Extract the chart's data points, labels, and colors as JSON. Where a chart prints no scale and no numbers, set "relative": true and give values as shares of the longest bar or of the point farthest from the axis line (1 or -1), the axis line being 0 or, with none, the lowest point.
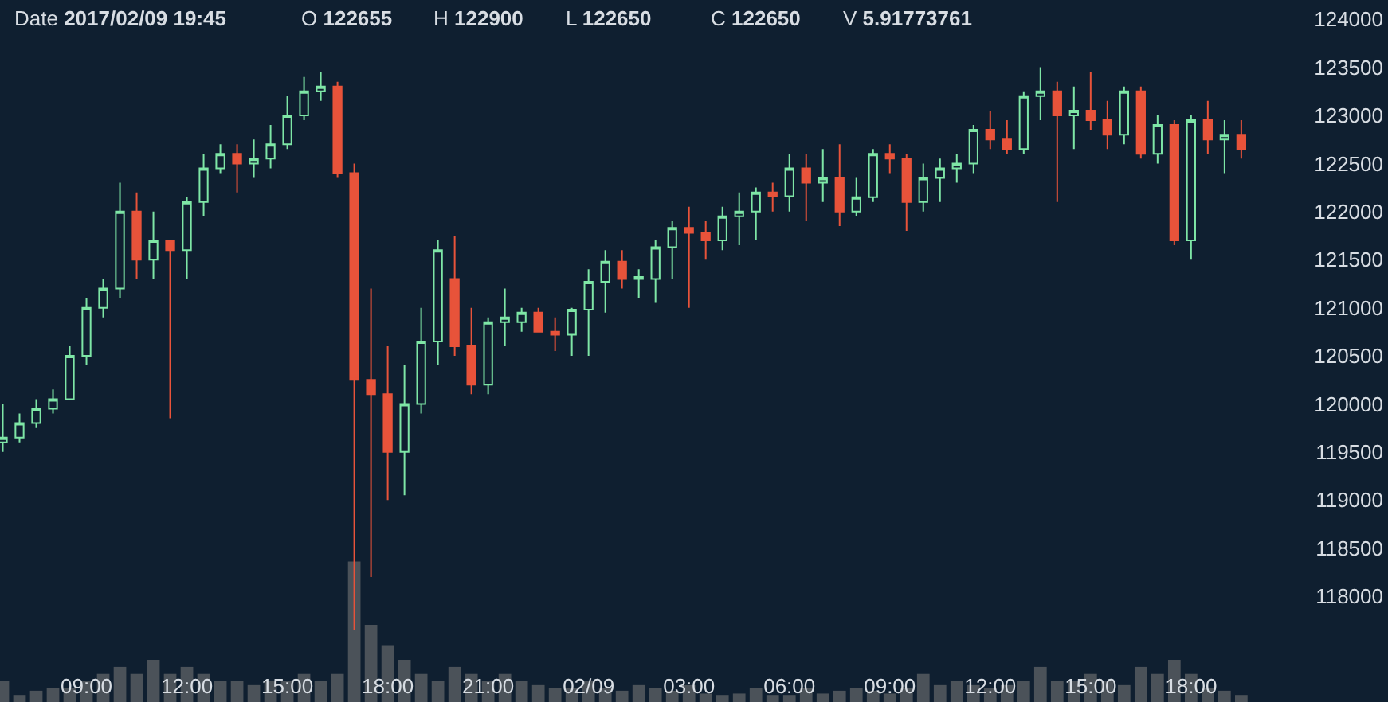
{
  "chart_data": [
    {
      "type": "candlestick",
      "annotations": [
        "Date 2017/02/09 19:45",
        "O 122655",
        "H 122900",
        "L 122650",
        "C 122650",
        "V 5.91773761"
      ],
      "x": [
        "2017-02-08T06:30",
        "2017-02-08T07:00",
        "2017-02-08T07:30",
        "2017-02-08T08:00",
        "2017-02-08T08:30",
        "2017-02-08T09:00",
        "2017-02-08T09:30",
        "2017-02-08T10:00",
        "2017-02-08T10:30",
        "2017-02-08T11:00",
        "2017-02-08T11:30",
        "2017-02-08T12:00",
        "2017-02-08T12:30",
        "2017-02-08T13:00",
        "2017-02-08T13:30",
        "2017-02-08T14:00",
        "2017-02-08T14:30",
        "2017-02-08T15:00",
        "2017-02-08T15:30",
        "2017-02-08T16:00",
        "2017-02-08T16:30",
        "2017-02-08T17:00",
        "2017-02-08T17:30",
        "2017-02-08T18:00",
        "2017-02-08T18:30",
        "2017-02-08T19:00",
        "2017-02-08T19:30",
        "2017-02-08T20:00",
        "2017-02-08T20:30",
        "2017-02-08T21:00",
        "2017-02-08T21:30",
        "2017-02-08T22:00",
        "2017-02-08T22:30",
        "2017-02-08T23:00",
        "2017-02-08T23:30",
        "2017-02-09T00:00",
        "2017-02-09T00:30",
        "2017-02-09T01:00",
        "2017-02-09T01:30",
        "2017-02-09T02:00",
        "2017-02-09T02:30",
        "2017-02-09T03:00",
        "2017-02-09T03:30",
        "2017-02-09T04:00",
        "2017-02-09T04:30",
        "2017-02-09T05:00",
        "2017-02-09T05:30",
        "2017-02-09T06:00",
        "2017-02-09T06:30",
        "2017-02-09T07:00",
        "2017-02-09T07:30",
        "2017-02-09T08:00",
        "2017-02-09T08:30",
        "2017-02-09T09:00",
        "2017-02-09T09:30",
        "2017-02-09T10:00",
        "2017-02-09T10:30",
        "2017-02-09T11:00",
        "2017-02-09T11:30",
        "2017-02-09T12:00",
        "2017-02-09T12:30",
        "2017-02-09T13:00",
        "2017-02-09T13:30",
        "2017-02-09T14:00",
        "2017-02-09T14:30",
        "2017-02-09T15:00",
        "2017-02-09T15:30",
        "2017-02-09T16:00",
        "2017-02-09T16:30",
        "2017-02-09T17:00",
        "2017-02-09T17:30",
        "2017-02-09T18:00",
        "2017-02-09T18:30",
        "2017-02-09T19:00",
        "2017-02-09T19:30"
      ],
      "ohlc": [
        [
          119600,
          120000,
          119500,
          119650
        ],
        [
          119650,
          119900,
          119600,
          119800
        ],
        [
          119800,
          120050,
          119750,
          119950
        ],
        [
          119950,
          120150,
          119900,
          120050
        ],
        [
          120050,
          120600,
          120050,
          120500
        ],
        [
          120500,
          121100,
          120400,
          121000
        ],
        [
          121000,
          121300,
          120900,
          121200
        ],
        [
          121200,
          122300,
          121100,
          122000
        ],
        [
          122000,
          122200,
          121300,
          121500
        ],
        [
          121500,
          122000,
          121300,
          121700
        ],
        [
          121700,
          121700,
          119850,
          121600
        ],
        [
          121600,
          122150,
          121300,
          122100
        ],
        [
          122100,
          122600,
          121950,
          122450
        ],
        [
          122450,
          122700,
          122400,
          122600
        ],
        [
          122600,
          122700,
          122200,
          122500
        ],
        [
          122500,
          122750,
          122350,
          122550
        ],
        [
          122550,
          122900,
          122450,
          122700
        ],
        [
          122700,
          123200,
          122650,
          123000
        ],
        [
          123000,
          123400,
          122950,
          123250
        ],
        [
          123250,
          123450,
          123150,
          123300
        ],
        [
          123300,
          123350,
          122350,
          122400
        ],
        [
          122400,
          122500,
          117650,
          120250
        ],
        [
          120250,
          121200,
          118200,
          120100
        ],
        [
          120100,
          120600,
          119000,
          119500
        ],
        [
          119500,
          120400,
          119050,
          120000
        ],
        [
          120000,
          121000,
          119900,
          120650
        ],
        [
          120650,
          121700,
          120400,
          121600
        ],
        [
          121300,
          121750,
          120500,
          120600
        ],
        [
          120600,
          121000,
          120100,
          120200
        ],
        [
          120200,
          120900,
          120100,
          120850
        ],
        [
          120850,
          121200,
          120600,
          120900
        ],
        [
          120850,
          121000,
          120750,
          120950
        ],
        [
          120950,
          121000,
          120750,
          120750
        ],
        [
          120750,
          120900,
          120550,
          120720
        ],
        [
          120720,
          121000,
          120500,
          120980
        ],
        [
          120980,
          121400,
          120500,
          121270
        ],
        [
          121270,
          121600,
          120950,
          121480
        ],
        [
          121480,
          121600,
          121200,
          121300
        ],
        [
          121300,
          121400,
          121100,
          121320
        ],
        [
          121300,
          121700,
          121050,
          121630
        ],
        [
          121630,
          121900,
          121300,
          121830
        ],
        [
          121830,
          122050,
          121000,
          121780
        ],
        [
          121780,
          121900,
          121500,
          121700
        ],
        [
          121700,
          122050,
          121600,
          121950
        ],
        [
          121950,
          122200,
          121650,
          122000
        ],
        [
          122000,
          122250,
          121700,
          122200
        ],
        [
          122200,
          122300,
          122000,
          122160
        ],
        [
          122160,
          122600,
          122000,
          122450
        ],
        [
          122450,
          122600,
          121900,
          122300
        ],
        [
          122300,
          122650,
          122100,
          122350
        ],
        [
          122350,
          122700,
          121850,
          122000
        ],
        [
          122000,
          122350,
          121950,
          122150
        ],
        [
          122150,
          122650,
          122100,
          122600
        ],
        [
          122600,
          122700,
          122400,
          122550
        ],
        [
          122550,
          122600,
          121800,
          122100
        ],
        [
          122100,
          122500,
          122000,
          122350
        ],
        [
          122350,
          122550,
          122100,
          122450
        ],
        [
          122450,
          122600,
          122300,
          122500
        ],
        [
          122500,
          122900,
          122400,
          122850
        ],
        [
          122850,
          123050,
          122650,
          122750
        ],
        [
          122750,
          122950,
          122600,
          122650
        ],
        [
          122650,
          123250,
          122600,
          123200
        ],
        [
          123200,
          123500,
          122950,
          123250
        ],
        [
          123250,
          123350,
          122100,
          123000
        ],
        [
          123000,
          123300,
          122650,
          123050
        ],
        [
          123050,
          123450,
          122850,
          122950
        ],
        [
          122950,
          123150,
          122650,
          122800
        ],
        [
          122800,
          123300,
          122700,
          123250
        ],
        [
          123250,
          123300,
          122550,
          122600
        ],
        [
          122600,
          123000,
          122500,
          122900
        ],
        [
          122900,
          122950,
          121650,
          121700
        ],
        [
          121700,
          123000,
          121500,
          122950
        ],
        [
          122950,
          123150,
          122600,
          122750
        ],
        [
          122750,
          122950,
          122400,
          122800
        ],
        [
          122800,
          122950,
          122550,
          122650
        ]
      ],
      "colors": [
        "#7ee6a6",
        "#7ee6a6",
        "#7ee6a6",
        "#7ee6a6",
        "#7ee6a6",
        "#7ee6a6",
        "#7ee6a6",
        "#7ee6a6",
        "#e8533a",
        "#7ee6a6",
        "#e8533a",
        "#7ee6a6",
        "#7ee6a6",
        "#7ee6a6",
        "#e8533a",
        "#7ee6a6",
        "#7ee6a6",
        "#7ee6a6",
        "#7ee6a6",
        "#7ee6a6",
        "#e8533a",
        "#e8533a",
        "#e8533a",
        "#e8533a",
        "#7ee6a6",
        "#7ee6a6",
        "#7ee6a6",
        "#e8533a",
        "#e8533a",
        "#7ee6a6",
        "#7ee6a6",
        "#7ee6a6",
        "#e8533a",
        "#e8533a",
        "#7ee6a6",
        "#7ee6a6",
        "#7ee6a6",
        "#e8533a",
        "#7ee6a6",
        "#7ee6a6",
        "#7ee6a6",
        "#e8533a",
        "#e8533a",
        "#7ee6a6",
        "#7ee6a6",
        "#7ee6a6",
        "#e8533a",
        "#7ee6a6",
        "#e8533a",
        "#7ee6a6",
        "#e8533a",
        "#7ee6a6",
        "#7ee6a6",
        "#e8533a",
        "#e8533a",
        "#7ee6a6",
        "#7ee6a6",
        "#7ee6a6",
        "#7ee6a6",
        "#e8533a",
        "#e8533a",
        "#7ee6a6",
        "#7ee6a6",
        "#e8533a",
        "#7ee6a6",
        "#e8533a",
        "#e8533a",
        "#7ee6a6",
        "#e8533a",
        "#7ee6a6",
        "#e8533a",
        "#7ee6a6",
        "#e8533a",
        "#7ee6a6",
        "#e8533a"
      ],
      "xlim": [
        "2017-02-08T06:25",
        "2017-02-09T23:53"
      ],
      "xticks": [
        {
          "value": "2017-02-08T09:00",
          "label": "09:00"
        },
        {
          "value": "2017-02-08T12:00",
          "label": "12:00"
        },
        {
          "value": "2017-02-08T15:00",
          "label": "15:00"
        },
        {
          "value": "2017-02-08T18:00",
          "label": "18:00"
        },
        {
          "value": "2017-02-08T21:00",
          "label": "21:00"
        },
        {
          "value": "2017-02-09T00:00",
          "label": "02/09"
        },
        {
          "value": "2017-02-09T03:00",
          "label": "03:00"
        },
        {
          "value": "2017-02-09T06:00",
          "label": "06:00"
        },
        {
          "value": "2017-02-09T09:00",
          "label": "09:00"
        },
        {
          "value": "2017-02-09T12:00",
          "label": "12:00"
        },
        {
          "value": "2017-02-09T15:00",
          "label": "15:00"
        },
        {
          "value": "2017-02-09T18:00",
          "label": "18:00"
        }
      ],
      "ylim": [
        116900,
        124200
      ],
      "yticks": [
        118000,
        118500,
        119000,
        119500,
        120000,
        120500,
        121000,
        121500,
        122000,
        122500,
        123000,
        123500,
        124000
      ],
      "grid": false
    },
    {
      "type": "bar",
      "relative": true,
      "tick_labels": false,
      "color": "#4b5259",
      "x": [
        "2017-02-08T06:30",
        "2017-02-08T07:00",
        "2017-02-08T07:30",
        "2017-02-08T08:00",
        "2017-02-08T08:30",
        "2017-02-08T09:00",
        "2017-02-08T09:30",
        "2017-02-08T10:00",
        "2017-02-08T10:30",
        "2017-02-08T11:00",
        "2017-02-08T11:30",
        "2017-02-08T12:00",
        "2017-02-08T12:30",
        "2017-02-08T13:00",
        "2017-02-08T13:30",
        "2017-02-08T14:00",
        "2017-02-08T14:30",
        "2017-02-08T15:00",
        "2017-02-08T15:30",
        "2017-02-08T16:00",
        "2017-02-08T16:30",
        "2017-02-08T17:00",
        "2017-02-08T17:30",
        "2017-02-08T18:00",
        "2017-02-08T18:30",
        "2017-02-08T19:00",
        "2017-02-08T19:30",
        "2017-02-08T20:00",
        "2017-02-08T20:30",
        "2017-02-08T21:00",
        "2017-02-08T21:30",
        "2017-02-08T22:00",
        "2017-02-08T22:30",
        "2017-02-08T23:00",
        "2017-02-08T23:30",
        "2017-02-09T00:00",
        "2017-02-09T00:30",
        "2017-02-09T01:00",
        "2017-02-09T01:30",
        "2017-02-09T02:00",
        "2017-02-09T02:30",
        "2017-02-09T03:00",
        "2017-02-09T03:30",
        "2017-02-09T04:00",
        "2017-02-09T04:30",
        "2017-02-09T05:00",
        "2017-02-09T05:30",
        "2017-02-09T06:00",
        "2017-02-09T06:30",
        "2017-02-09T07:00",
        "2017-02-09T07:30",
        "2017-02-09T08:00",
        "2017-02-09T08:30",
        "2017-02-09T09:00",
        "2017-02-09T09:30",
        "2017-02-09T10:00",
        "2017-02-09T10:30",
        "2017-02-09T11:00",
        "2017-02-09T11:30",
        "2017-02-09T12:00",
        "2017-02-09T12:30",
        "2017-02-09T13:00",
        "2017-02-09T13:30",
        "2017-02-09T14:00",
        "2017-02-09T14:30",
        "2017-02-09T15:00",
        "2017-02-09T15:30",
        "2017-02-09T16:00",
        "2017-02-09T16:30",
        "2017-02-09T17:00",
        "2017-02-09T17:30",
        "2017-02-09T18:00",
        "2017-02-09T18:30",
        "2017-02-09T19:00",
        "2017-02-09T19:30"
      ],
      "xlim": [
        "2017-02-08T06:25",
        "2017-02-09T23:53"
      ],
      "values": [
        0.15,
        0.05,
        0.08,
        0.1,
        0.1,
        0.15,
        0.2,
        0.25,
        0.2,
        0.3,
        0.2,
        0.25,
        0.2,
        0.15,
        0.15,
        0.12,
        0.15,
        0.15,
        0.2,
        0.15,
        0.2,
        1,
        0.55,
        0.4,
        0.3,
        0.2,
        0.15,
        0.25,
        0.2,
        0.15,
        0.2,
        0.15,
        0.12,
        0.1,
        0.1,
        0.15,
        0.1,
        0.08,
        0.12,
        0.1,
        0.08,
        0.12,
        0.06,
        0.05,
        0.06,
        0.1,
        0.05,
        0.05,
        0.1,
        0.06,
        0.08,
        0.1,
        0.08,
        0.06,
        0.1,
        0.2,
        0.12,
        0.15,
        0.12,
        0.1,
        0.12,
        0.15,
        0.25,
        0.15,
        0.15,
        0.2,
        0.15,
        0.12,
        0.25,
        0.2,
        0.3,
        0.2,
        0.1,
        0.08,
        0.05
      ]
    }
  ]
}
